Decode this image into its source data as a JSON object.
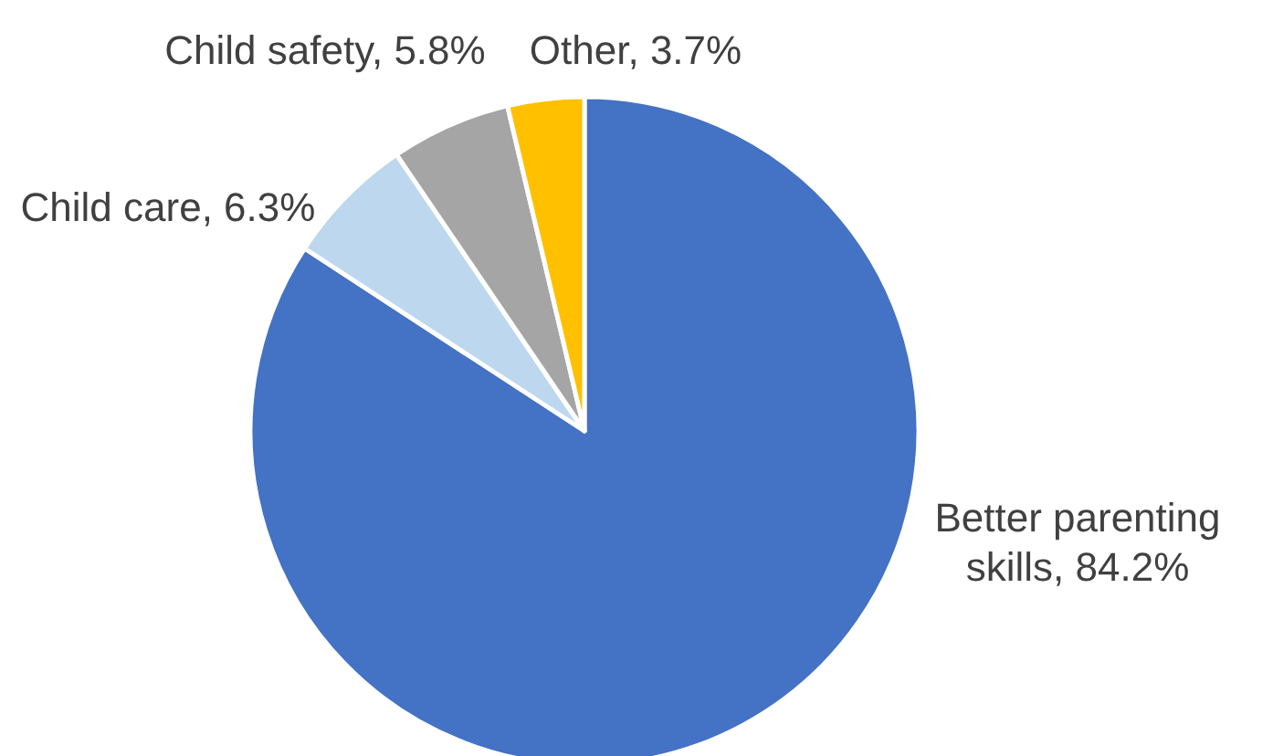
{
  "chart_data": {
    "type": "pie",
    "categories": [
      "Better parenting skills",
      "Child care",
      "Child safety",
      "Other"
    ],
    "values": [
      84.2,
      6.3,
      5.8,
      3.7
    ],
    "value_labels": [
      "84.2%",
      "6.3%",
      "5.8%",
      "3.7%"
    ],
    "colors": [
      "#4472c4",
      "#bdd7ee",
      "#a5a5a5",
      "#ffc000"
    ]
  }
}
